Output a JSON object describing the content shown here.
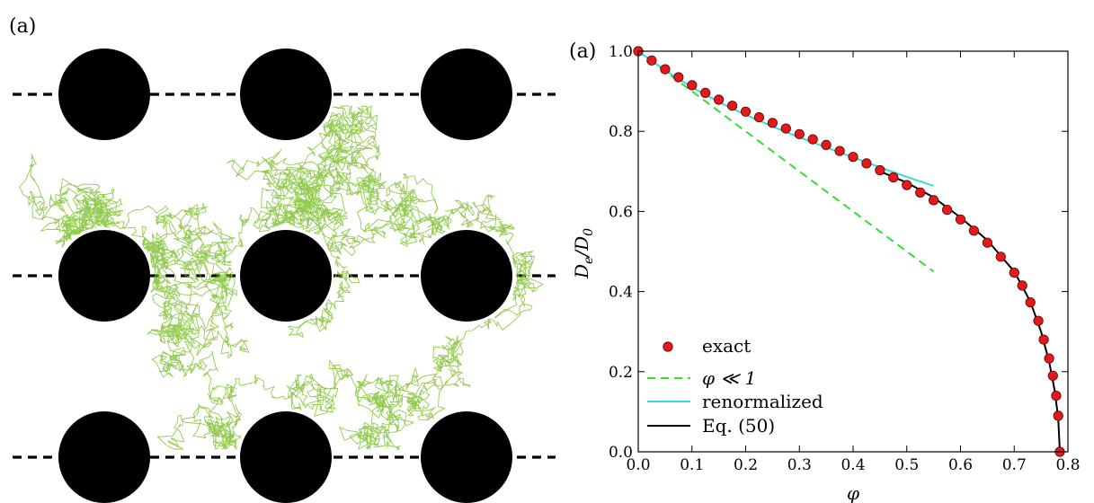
{
  "left_panel": {
    "label": "(a)",
    "obstacle_color": "#000000",
    "walk_color": "#7fc230",
    "lattice_rows": 3,
    "lattice_cols": 3
  },
  "right_panel": {
    "label": "(a)"
  },
  "chart_data": {
    "type": "scatter",
    "xlabel": "φ",
    "ylabel": "De/D0",
    "xlim": [
      0.0,
      0.8
    ],
    "ylim": [
      0.0,
      1.0
    ],
    "xticks": [
      "0.0",
      "0.1",
      "0.2",
      "0.3",
      "0.4",
      "0.5",
      "0.6",
      "0.7",
      "0.8"
    ],
    "yticks": [
      "0.0",
      "0.2",
      "0.4",
      "0.6",
      "0.8",
      "1.0"
    ],
    "grid": false,
    "legend_position": "bottom-left",
    "series": [
      {
        "name": "exact",
        "kind": "markers",
        "color": "#e31a1c",
        "x": [
          0.0,
          0.025,
          0.05,
          0.075,
          0.1,
          0.125,
          0.15,
          0.175,
          0.2,
          0.225,
          0.25,
          0.275,
          0.3,
          0.325,
          0.35,
          0.375,
          0.4,
          0.425,
          0.45,
          0.475,
          0.5,
          0.525,
          0.55,
          0.575,
          0.6,
          0.625,
          0.65,
          0.675,
          0.7,
          0.715,
          0.73,
          0.745,
          0.755,
          0.765,
          0.772,
          0.778,
          0.782,
          0.785
        ],
        "y": [
          1.0,
          0.977,
          0.955,
          0.935,
          0.915,
          0.896,
          0.879,
          0.864,
          0.849,
          0.835,
          0.821,
          0.807,
          0.793,
          0.78,
          0.766,
          0.751,
          0.736,
          0.72,
          0.703,
          0.685,
          0.666,
          0.647,
          0.628,
          0.604,
          0.58,
          0.552,
          0.522,
          0.487,
          0.447,
          0.415,
          0.373,
          0.327,
          0.28,
          0.233,
          0.19,
          0.14,
          0.09,
          0.0
        ]
      },
      {
        "name": "φ ≪ 1",
        "kind": "dashed-line",
        "color": "#33dd33",
        "x": [
          0.0,
          0.55
        ],
        "y": [
          1.0,
          0.45
        ]
      },
      {
        "name": "renormalized",
        "kind": "line",
        "color": "#33dddd",
        "x": [
          0.0,
          0.05,
          0.1,
          0.15,
          0.2,
          0.25,
          0.3,
          0.35,
          0.4,
          0.45,
          0.5,
          0.55
        ],
        "y": [
          1.0,
          0.952,
          0.91,
          0.873,
          0.841,
          0.812,
          0.785,
          0.76,
          0.735,
          0.71,
          0.686,
          0.664
        ]
      },
      {
        "name": "Eq. (50)",
        "kind": "line",
        "color": "#000000",
        "x": [
          0.45,
          0.5,
          0.55,
          0.6,
          0.65,
          0.7,
          0.73,
          0.75,
          0.765,
          0.775,
          0.782,
          0.785
        ],
        "y": [
          0.7,
          0.672,
          0.635,
          0.585,
          0.528,
          0.45,
          0.375,
          0.3,
          0.225,
          0.155,
          0.085,
          0.0
        ]
      }
    ]
  }
}
